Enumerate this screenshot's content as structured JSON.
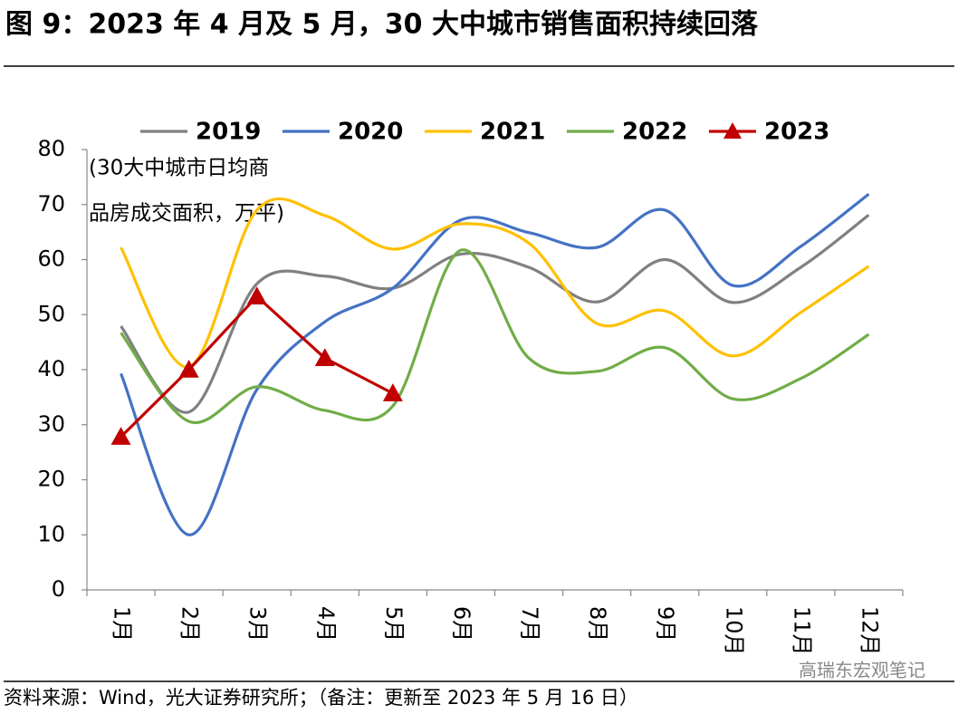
{
  "chart_data": {
    "type": "line",
    "title": "图 9：2023 年 4 月及 5 月，30 大中城市销售面积持续回落",
    "y_axis_label": [
      "(30大中城市日均商",
      "品房成交面积，万平)"
    ],
    "source": "资料来源：Wind，光大证券研究所；（备注：更新至 2023 年 5 月 16 日）",
    "watermark": "高瑞东宏观笔记",
    "categories": [
      "1月",
      "2月",
      "3月",
      "4月",
      "5月",
      "6月",
      "7月",
      "8月",
      "9月",
      "10月",
      "11月",
      "12月"
    ],
    "series": [
      {
        "name": "2019",
        "color": "#808080",
        "smooth": true,
        "values": [
          47.9,
          32.3,
          55.6,
          57,
          54.8,
          61,
          58.6,
          52.3,
          60,
          52.2,
          58.6,
          68.1
        ]
      },
      {
        "name": "2020",
        "color": "#4472c4",
        "smooth": true,
        "values": [
          39.3,
          10,
          36.4,
          48.7,
          54.8,
          67.2,
          64.9,
          62.2,
          69,
          55.3,
          62.4,
          71.9
        ]
      },
      {
        "name": "2021",
        "color": "#ffc000",
        "smooth": true,
        "values": [
          62.2,
          40.5,
          69,
          68,
          61.9,
          66.5,
          63,
          48.4,
          50.7,
          42.5,
          50.4,
          58.8
        ]
      },
      {
        "name": "2022",
        "color": "#70ad47",
        "smooth": true,
        "values": [
          46.7,
          30.6,
          36.9,
          32.6,
          33.4,
          61.7,
          42.1,
          39.7,
          44,
          34.7,
          38.4,
          46.4
        ]
      },
      {
        "name": "2023",
        "color": "#c00000",
        "smooth": false,
        "marker": "triangle",
        "values": [
          27.8,
          40,
          53.3,
          42.1,
          35.7,
          null,
          null,
          null,
          null,
          null,
          null,
          null
        ]
      }
    ],
    "ylim": [
      0,
      80
    ],
    "yticks": [
      0,
      10,
      20,
      30,
      40,
      50,
      60,
      70,
      80
    ],
    "legend": "top"
  }
}
